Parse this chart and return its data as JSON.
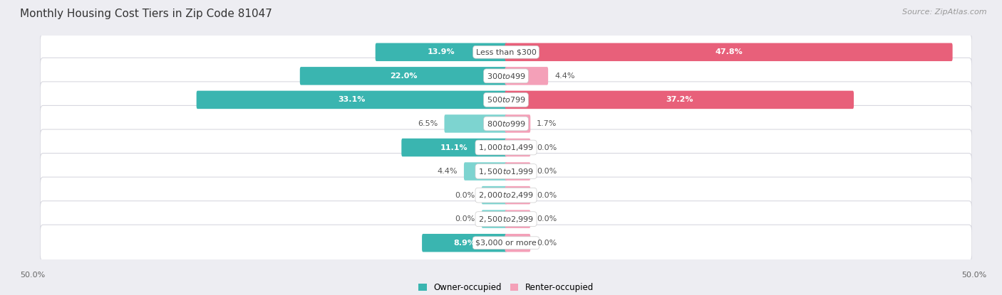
{
  "title": "Monthly Housing Cost Tiers in Zip Code 81047",
  "source": "Source: ZipAtlas.com",
  "categories": [
    "Less than $300",
    "$300 to $499",
    "$500 to $799",
    "$800 to $999",
    "$1,000 to $1,499",
    "$1,500 to $1,999",
    "$2,000 to $2,499",
    "$2,500 to $2,999",
    "$3,000 or more"
  ],
  "owner_values": [
    13.9,
    22.0,
    33.1,
    6.5,
    11.1,
    4.4,
    0.0,
    0.0,
    8.9
  ],
  "renter_values": [
    47.8,
    4.4,
    37.2,
    1.7,
    0.0,
    0.0,
    0.0,
    0.0,
    0.0
  ],
  "owner_color_dark": "#3ab5b0",
  "owner_color_light": "#7dd4d0",
  "renter_color_dark": "#e8607a",
  "renter_color_light": "#f4a0b8",
  "background_color": "#ededf2",
  "row_bg_color": "#ffffff",
  "row_edge_color": "#d8d8e0",
  "max_value": 50.0,
  "axis_label_left": "50.0%",
  "axis_label_right": "50.0%",
  "legend_owner": "Owner-occupied",
  "legend_renter": "Renter-occupied",
  "title_fontsize": 11,
  "source_fontsize": 8,
  "label_fontsize": 8,
  "category_fontsize": 8,
  "bar_height": 0.52,
  "zero_stub": 2.5,
  "inside_label_threshold": 8.0
}
